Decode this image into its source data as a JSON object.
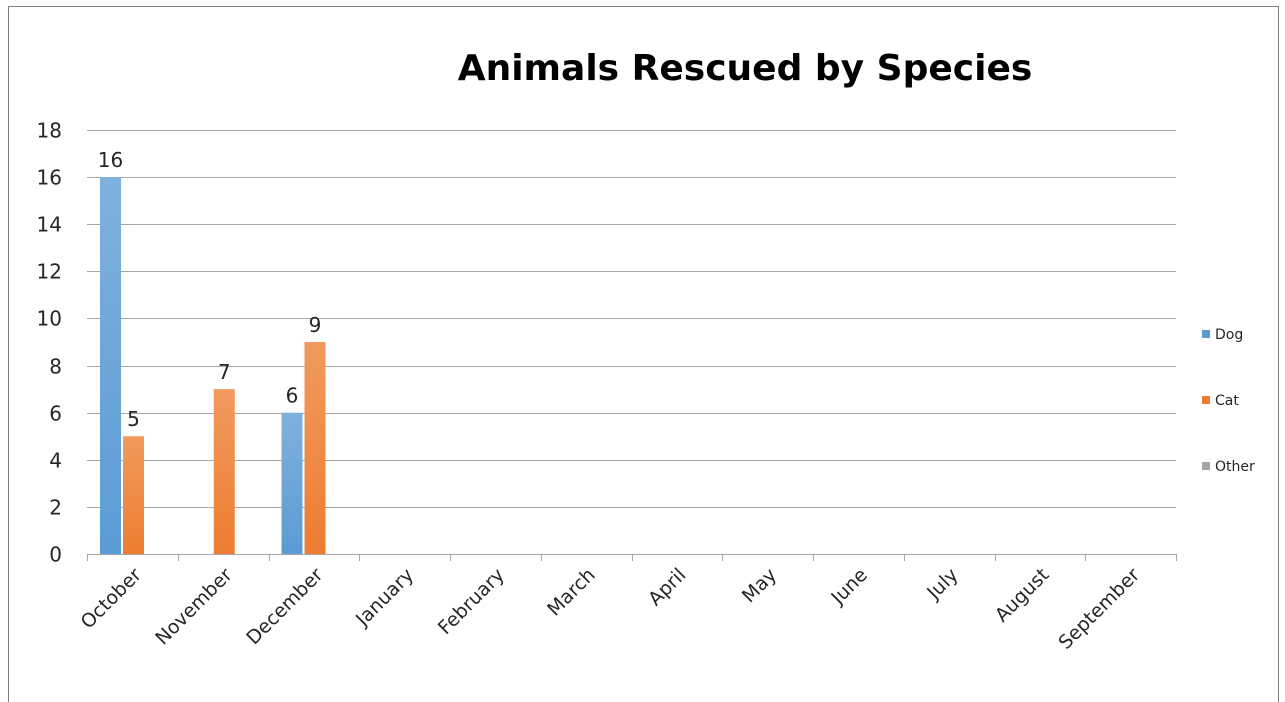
{
  "chart_data": {
    "type": "bar",
    "title": "Animals Rescued by Species",
    "xlabel": "",
    "ylabel": "",
    "categories": [
      "October",
      "November",
      "December",
      "January",
      "February",
      "March",
      "April",
      "May",
      "June",
      "July",
      "August",
      "September"
    ],
    "series": [
      {
        "name": "Dog",
        "color": "#5b9bd5",
        "values": [
          16,
          null,
          6,
          null,
          null,
          null,
          null,
          null,
          null,
          null,
          null,
          null
        ]
      },
      {
        "name": "Cat",
        "color": "#ed7d31",
        "values": [
          5,
          7,
          9,
          null,
          null,
          null,
          null,
          null,
          null,
          null,
          null,
          null
        ]
      },
      {
        "name": "Other",
        "color": "#a5a5a5",
        "values": [
          null,
          null,
          null,
          null,
          null,
          null,
          null,
          null,
          null,
          null,
          null,
          null
        ]
      }
    ],
    "ylim": [
      0,
      18
    ],
    "yticks": [
      0,
      2,
      4,
      6,
      8,
      10,
      12,
      14,
      16,
      18
    ],
    "grid": true,
    "data_labels": true,
    "legend_position": "right",
    "colors": {
      "gridline": "#a6a6a6",
      "axis": "#a6a6a6",
      "frame": "#7f7f7f"
    }
  }
}
